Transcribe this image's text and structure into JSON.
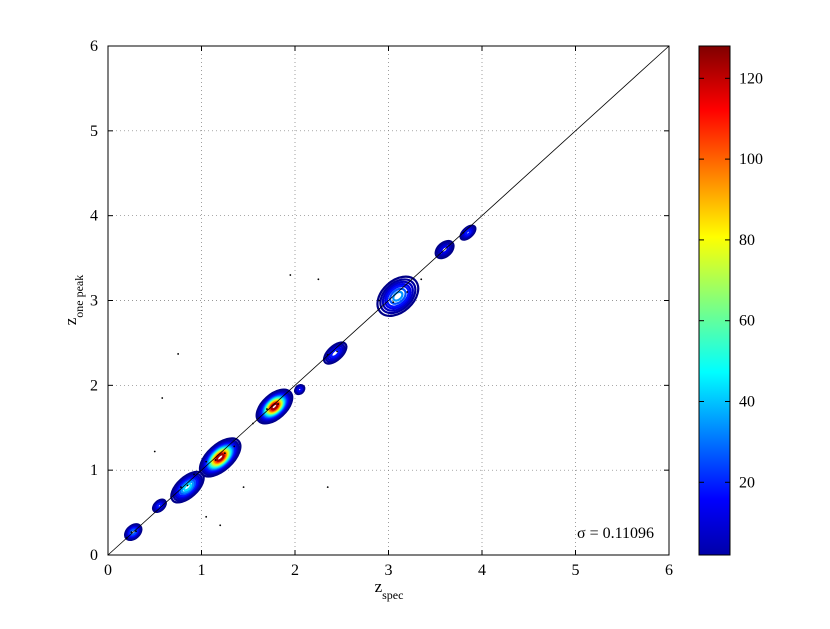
{
  "chart_data": {
    "type": "contour",
    "xlabel": {
      "base": "z",
      "sub": "spec"
    },
    "ylabel": {
      "base": "z",
      "sub": "one peak"
    },
    "xlim": [
      0,
      6
    ],
    "ylim": [
      0,
      6
    ],
    "xticks": [
      "0",
      "1",
      "2",
      "3",
      "4",
      "5",
      "6"
    ],
    "yticks": [
      "0",
      "1",
      "2",
      "3",
      "4",
      "5",
      "6"
    ],
    "grid": "on (dotted)",
    "annotation": "σ = 0.11096",
    "reference_line": {
      "from": [
        0,
        0
      ],
      "to": [
        6,
        6
      ]
    },
    "colorbar": {
      "range": [
        2,
        128
      ],
      "ticks": [
        "20",
        "40",
        "60",
        "80",
        "100",
        "120"
      ],
      "tick_values": [
        20,
        40,
        60,
        80,
        100,
        120
      ],
      "colormap": "jet"
    },
    "density_clusters": [
      {
        "x": 0.27,
        "y": 0.27,
        "sx": 0.12,
        "sy": 0.09,
        "peak": 35
      },
      {
        "x": 0.55,
        "y": 0.58,
        "sx": 0.1,
        "sy": 0.07,
        "peak": 20
      },
      {
        "x": 0.85,
        "y": 0.8,
        "sx": 0.25,
        "sy": 0.14,
        "peak": 50
      },
      {
        "x": 1.2,
        "y": 1.15,
        "sx": 0.3,
        "sy": 0.17,
        "peak": 128
      },
      {
        "x": 1.78,
        "y": 1.75,
        "sx": 0.26,
        "sy": 0.16,
        "peak": 128
      },
      {
        "x": 2.05,
        "y": 1.95,
        "sx": 0.07,
        "sy": 0.06,
        "peak": 15
      },
      {
        "x": 2.43,
        "y": 2.38,
        "sx": 0.18,
        "sy": 0.1,
        "peak": 25
      },
      {
        "x": 3.1,
        "y": 3.05,
        "sx": 0.3,
        "sy": 0.22,
        "peak": 40
      },
      {
        "x": 3.6,
        "y": 3.6,
        "sx": 0.14,
        "sy": 0.1,
        "peak": 18
      },
      {
        "x": 3.85,
        "y": 3.8,
        "sx": 0.12,
        "sy": 0.07,
        "peak": 22
      }
    ],
    "scatter_points": [
      [
        0.2,
        0.2
      ],
      [
        0.25,
        0.27
      ],
      [
        0.3,
        0.28
      ],
      [
        0.78,
        0.8
      ],
      [
        0.85,
        0.82
      ],
      [
        0.92,
        0.95
      ],
      [
        1.05,
        1.1
      ],
      [
        1.15,
        1.12
      ],
      [
        1.25,
        1.2
      ],
      [
        1.35,
        1.28
      ],
      [
        1.55,
        1.55
      ],
      [
        1.7,
        1.72
      ],
      [
        1.82,
        1.78
      ],
      [
        2.35,
        2.36
      ],
      [
        2.45,
        2.4
      ],
      [
        2.9,
        3.0
      ],
      [
        3.05,
        2.98
      ],
      [
        3.2,
        3.1
      ],
      [
        3.35,
        3.25
      ],
      [
        3.8,
        3.8
      ],
      [
        0.5,
        1.22
      ],
      [
        0.58,
        1.85
      ],
      [
        0.75,
        2.37
      ],
      [
        1.05,
        0.45
      ],
      [
        1.2,
        0.35
      ],
      [
        1.45,
        0.8
      ],
      [
        2.25,
        3.25
      ],
      [
        2.35,
        0.8
      ],
      [
        1.95,
        3.3
      ]
    ]
  }
}
